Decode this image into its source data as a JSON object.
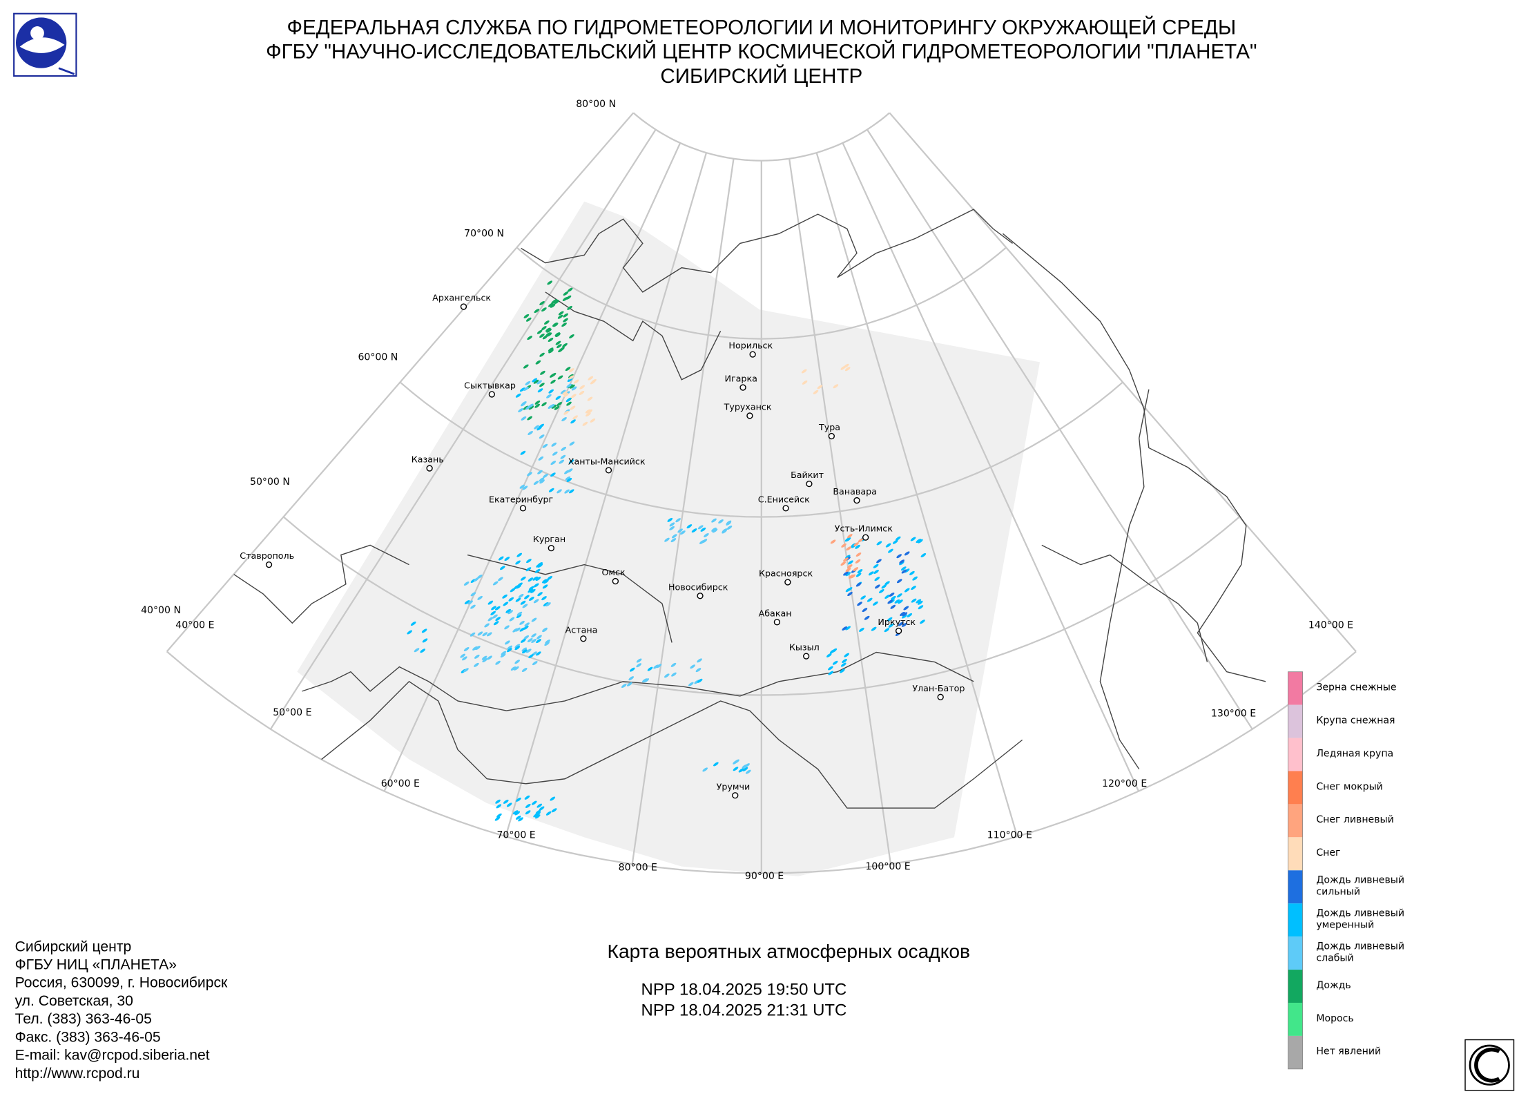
{
  "header": {
    "lines": [
      "ФЕДЕРАЛЬНАЯ СЛУЖБА ПО ГИДРОМЕТЕОРОЛОГИИ И МОНИТОРИНГУ ОКРУЖАЮЩЕЙ СРЕДЫ",
      "ФГБУ \"НАУЧНО-ИССЛЕДОВАТЕЛЬСКИЙ ЦЕНТР КОСМИЧЕСКОЙ ГИДРОМЕТЕОРОЛОГИИ \"ПЛАНЕТА\"",
      "СИБИРСКИЙ ЦЕНТР"
    ]
  },
  "map": {
    "latitude_labels": [
      "80°00 N",
      "70°00 N",
      "60°00 N",
      "50°00 N",
      "40°00 N"
    ],
    "longitude_labels": [
      "40°00 E",
      "50°00 E",
      "60°00 E",
      "70°00 E",
      "80°00 E",
      "90°00 E",
      "100°00 E",
      "110°00 E",
      "120°00 E",
      "130°00 E",
      "140°00 E"
    ],
    "cities": [
      "Архангельск",
      "Сыктывкар",
      "Казань",
      "Екатеринбург",
      "Курган",
      "Ставрополь",
      "Ханты-Мансийск",
      "Омск",
      "Астана",
      "Новосибирск",
      "Норильск",
      "Игарка",
      "Туруханск",
      "Тура",
      "Байкит",
      "Ванавара",
      "С.Енисейск",
      "Усть-Илимск",
      "Красноярск",
      "Абакан",
      "Кызыл",
      "Иркутск",
      "Улан-Батор",
      "Урумчи"
    ]
  },
  "legend": {
    "items": [
      {
        "lines": [
          "Зерна снежные"
        ],
        "color": "#f27aa2"
      },
      {
        "lines": [
          "Крупа снежная"
        ],
        "color": "#dcc3dc"
      },
      {
        "lines": [
          "Ледяная крупа"
        ],
        "color": "#ffc0cc"
      },
      {
        "lines": [
          "Снег мокрый"
        ],
        "color": "#ff7f4f"
      },
      {
        "lines": [
          "Снег ливневый"
        ],
        "color": "#ffa47e"
      },
      {
        "lines": [
          "Снег"
        ],
        "color": "#ffdcb9"
      },
      {
        "lines": [
          "Дождь ливневый",
          "сильный"
        ],
        "color": "#1e6fe0"
      },
      {
        "lines": [
          "Дождь ливневый",
          "умеренный"
        ],
        "color": "#00bfff"
      },
      {
        "lines": [
          "Дождь ливневый",
          "слабый"
        ],
        "color": "#5ecbf8"
      },
      {
        "lines": [
          "Дождь"
        ],
        "color": "#12a860"
      },
      {
        "lines": [
          "Морось"
        ],
        "color": "#42e68a"
      },
      {
        "lines": [
          "Нет явлений"
        ],
        "color": "#a8a8a8"
      }
    ]
  },
  "footer": {
    "contact": [
      "Сибирский центр",
      "ФГБУ НИЦ «ПЛАНЕТА»",
      "Россия, 630099, г. Новосибирск",
      "ул. Советская, 30",
      "Тел. (383) 363-46-05",
      "Факс. (383) 363-46-05",
      "E-mail: kav@rcpod.siberia.net",
      "http://www.rcpod.ru"
    ],
    "title": "Карта вероятных атмосферных осадков",
    "passes": [
      "NPP 18.04.2025  19:50 UTC",
      "NPP 18.04.2025  21:31 UTC"
    ]
  }
}
